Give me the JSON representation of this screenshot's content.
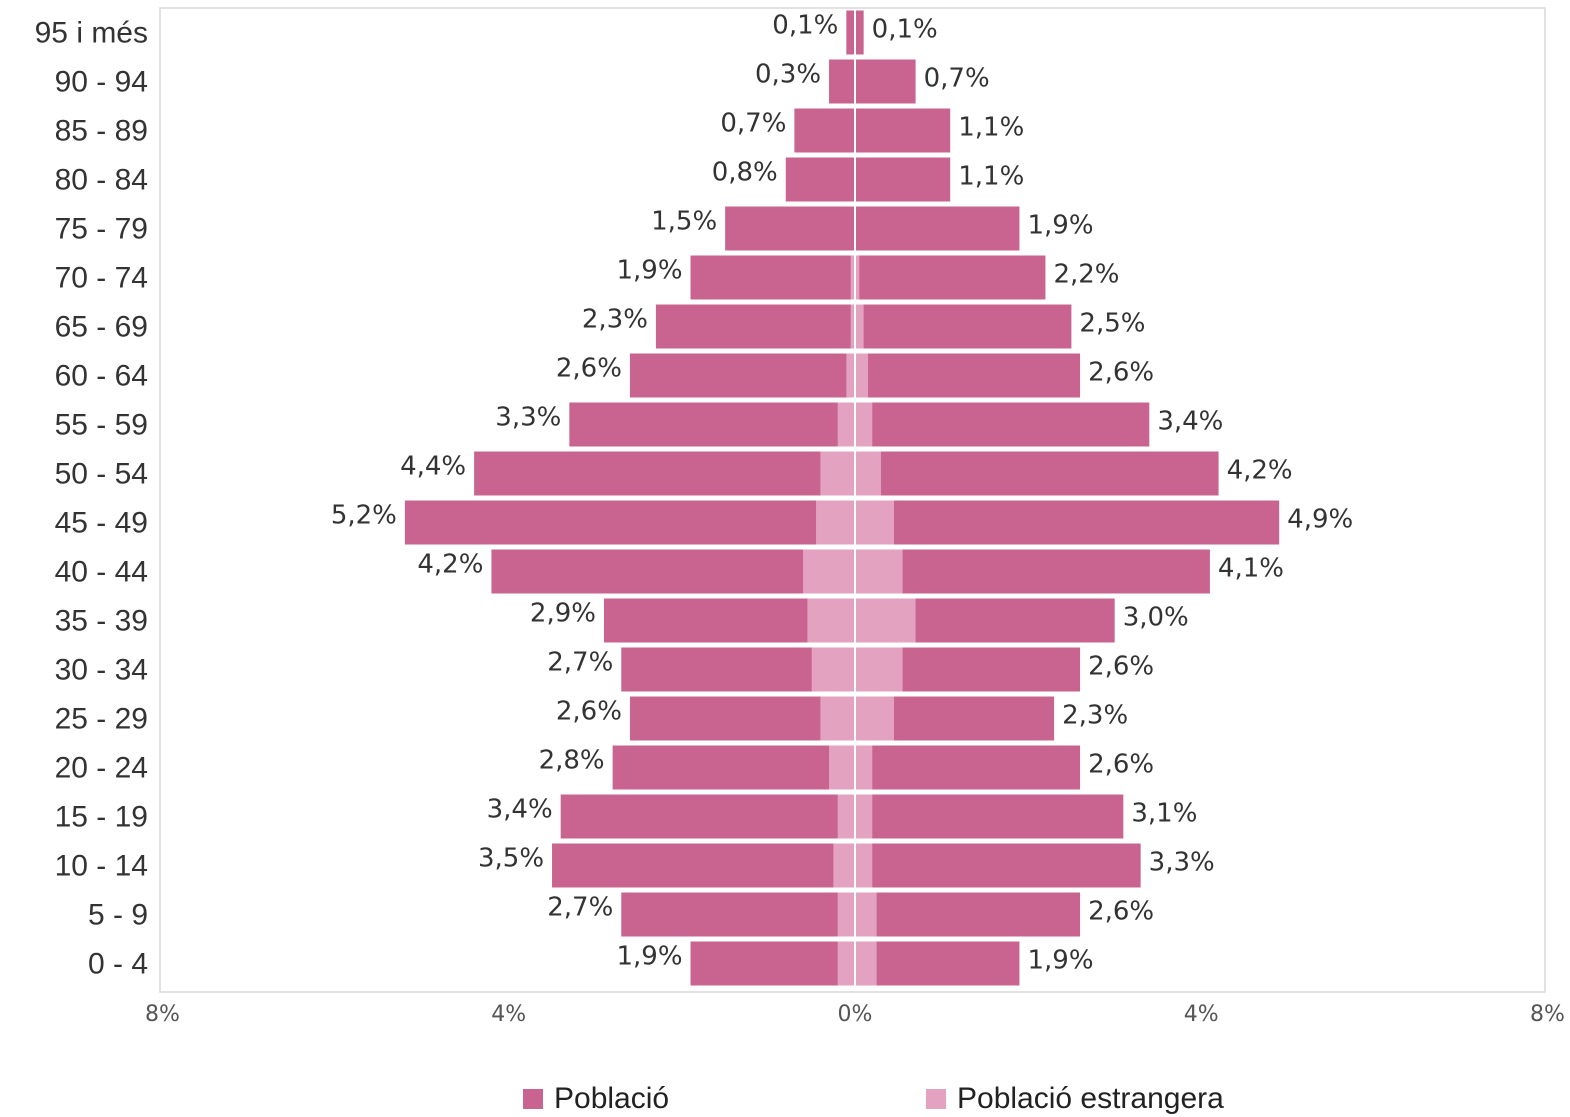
{
  "colors": {
    "population": "#c8648f",
    "foreign": "#e3a2c0",
    "frame": "#d9d9d9"
  },
  "legend": {
    "population": "Població",
    "foreign": "Població estrangera"
  },
  "chart_data": {
    "type": "bar",
    "orientation": "horizontal",
    "subtype": "population-pyramid",
    "xlim": [
      -8,
      8
    ],
    "x_ticks": [
      {
        "value": -8,
        "label": "8%"
      },
      {
        "value": -4,
        "label": "4%"
      },
      {
        "value": 0,
        "label": "0%"
      },
      {
        "value": 4,
        "label": "4%"
      },
      {
        "value": 8,
        "label": "8%"
      }
    ],
    "grid": false,
    "legend_position": "bottom",
    "categories": [
      "95 i més",
      "90 - 94",
      "85 - 89",
      "80 - 84",
      "75 - 79",
      "70 - 74",
      "65 - 69",
      "60 - 64",
      "55 - 59",
      "50 - 54",
      "45 - 49",
      "40 - 44",
      "35 - 39",
      "30 - 34",
      "25 - 29",
      "20 - 24",
      "15 - 19",
      "10 - 14",
      "5 - 9",
      "0 - 4"
    ],
    "series": [
      {
        "name": "Població",
        "side": "left",
        "values": [
          0.1,
          0.3,
          0.7,
          0.8,
          1.5,
          1.9,
          2.3,
          2.6,
          3.3,
          4.4,
          5.2,
          4.2,
          2.9,
          2.7,
          2.6,
          2.8,
          3.4,
          3.5,
          2.7,
          1.9
        ],
        "labels": [
          "0,1%",
          "0,3%",
          "0,7%",
          "0,8%",
          "1,5%",
          "1,9%",
          "2,3%",
          "2,6%",
          "3,3%",
          "4,4%",
          "5,2%",
          "4,2%",
          "2,9%",
          "2,7%",
          "2,6%",
          "2,8%",
          "3,4%",
          "3,5%",
          "2,7%",
          "1,9%"
        ]
      },
      {
        "name": "Població",
        "side": "right",
        "values": [
          0.1,
          0.7,
          1.1,
          1.1,
          1.9,
          2.2,
          2.5,
          2.6,
          3.4,
          4.2,
          4.9,
          4.1,
          3.0,
          2.6,
          2.3,
          2.6,
          3.1,
          3.3,
          2.6,
          1.9
        ],
        "labels": [
          "0,1%",
          "0,7%",
          "1,1%",
          "1,1%",
          "1,9%",
          "2,2%",
          "2,5%",
          "2,6%",
          "3,4%",
          "4,2%",
          "4,9%",
          "4,1%",
          "3,0%",
          "2,6%",
          "2,3%",
          "2,6%",
          "3,1%",
          "3,3%",
          "2,6%",
          "1,9%"
        ]
      },
      {
        "name": "Població estrangera",
        "side": "left",
        "values": [
          0.0,
          0.0,
          0.0,
          0.0,
          0.0,
          0.05,
          0.05,
          0.1,
          0.2,
          0.4,
          0.45,
          0.6,
          0.55,
          0.5,
          0.4,
          0.3,
          0.2,
          0.25,
          0.2,
          0.2
        ]
      },
      {
        "name": "Població estrangera",
        "side": "right",
        "values": [
          0.0,
          0.0,
          0.0,
          0.0,
          0.0,
          0.05,
          0.1,
          0.15,
          0.2,
          0.3,
          0.45,
          0.55,
          0.7,
          0.55,
          0.45,
          0.2,
          0.2,
          0.2,
          0.25,
          0.25
        ]
      }
    ]
  }
}
